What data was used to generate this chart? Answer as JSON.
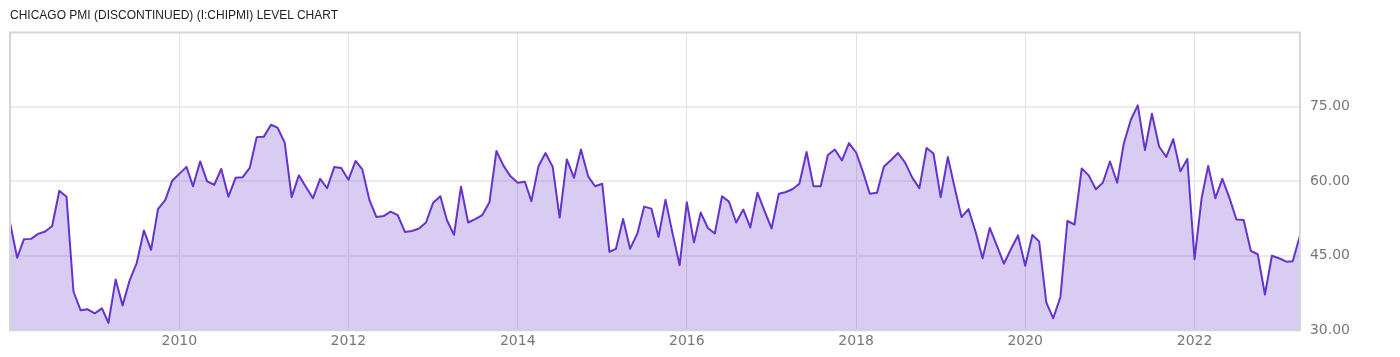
{
  "chart_data": {
    "type": "area",
    "title": "CHICAGO PMI (DISCONTINUED) (I:CHIPMI) LEVEL CHART",
    "x": [
      "2008-01",
      "2008-02",
      "2008-03",
      "2008-04",
      "2008-05",
      "2008-06",
      "2008-07",
      "2008-08",
      "2008-09",
      "2008-10",
      "2008-11",
      "2008-12",
      "2009-01",
      "2009-02",
      "2009-03",
      "2009-04",
      "2009-05",
      "2009-06",
      "2009-07",
      "2009-08",
      "2009-09",
      "2009-10",
      "2009-11",
      "2009-12",
      "2010-01",
      "2010-02",
      "2010-03",
      "2010-04",
      "2010-05",
      "2010-06",
      "2010-07",
      "2010-08",
      "2010-09",
      "2010-10",
      "2010-11",
      "2010-12",
      "2011-01",
      "2011-02",
      "2011-03",
      "2011-04",
      "2011-05",
      "2011-06",
      "2011-07",
      "2011-08",
      "2011-09",
      "2011-10",
      "2011-11",
      "2011-12",
      "2012-01",
      "2012-02",
      "2012-03",
      "2012-04",
      "2012-05",
      "2012-06",
      "2012-07",
      "2012-08",
      "2012-09",
      "2012-10",
      "2012-11",
      "2012-12",
      "2013-01",
      "2013-02",
      "2013-03",
      "2013-04",
      "2013-05",
      "2013-06",
      "2013-07",
      "2013-08",
      "2013-09",
      "2013-10",
      "2013-11",
      "2013-12",
      "2014-01",
      "2014-02",
      "2014-03",
      "2014-04",
      "2014-05",
      "2014-06",
      "2014-07",
      "2014-08",
      "2014-09",
      "2014-10",
      "2014-11",
      "2014-12",
      "2015-01",
      "2015-02",
      "2015-03",
      "2015-04",
      "2015-05",
      "2015-06",
      "2015-07",
      "2015-08",
      "2015-09",
      "2015-10",
      "2015-11",
      "2015-12",
      "2016-01",
      "2016-02",
      "2016-03",
      "2016-04",
      "2016-05",
      "2016-06",
      "2016-07",
      "2016-08",
      "2016-09",
      "2016-10",
      "2016-11",
      "2016-12",
      "2017-01",
      "2017-02",
      "2017-03",
      "2017-04",
      "2017-05",
      "2017-06",
      "2017-07",
      "2017-08",
      "2017-09",
      "2017-10",
      "2017-11",
      "2017-12",
      "2018-01",
      "2018-02",
      "2018-03",
      "2018-04",
      "2018-05",
      "2018-06",
      "2018-07",
      "2018-08",
      "2018-09",
      "2018-10",
      "2018-11",
      "2018-12",
      "2019-01",
      "2019-02",
      "2019-03",
      "2019-04",
      "2019-05",
      "2019-06",
      "2019-07",
      "2019-08",
      "2019-09",
      "2019-10",
      "2019-11",
      "2019-12",
      "2020-01",
      "2020-02",
      "2020-03",
      "2020-04",
      "2020-05",
      "2020-06",
      "2020-07",
      "2020-08",
      "2020-09",
      "2020-10",
      "2020-11",
      "2020-12",
      "2021-01",
      "2021-02",
      "2021-03",
      "2021-04",
      "2021-05",
      "2021-06",
      "2021-07",
      "2021-08",
      "2021-09",
      "2021-10",
      "2021-11",
      "2021-12",
      "2022-01",
      "2022-02",
      "2022-03",
      "2022-04",
      "2022-05",
      "2022-06",
      "2022-07",
      "2022-08",
      "2022-09",
      "2022-10",
      "2022-11",
      "2022-12",
      "2023-01",
      "2023-02",
      "2023-03",
      "2023-04"
    ],
    "series": [
      {
        "color": "#6633cc",
        "values": [
          51.7,
          44.6,
          48.3,
          48.4,
          49.4,
          49.9,
          51.0,
          58.1,
          56.9,
          37.8,
          34.0,
          34.2,
          33.4,
          34.4,
          31.5,
          40.2,
          35.0,
          40.1,
          43.5,
          50.1,
          46.2,
          54.4,
          56.2,
          60.1,
          61.5,
          62.9,
          59.0,
          64.0,
          60.0,
          59.3,
          62.5,
          56.9,
          60.7,
          60.8,
          62.7,
          68.9,
          69.0,
          71.4,
          70.8,
          67.8,
          56.8,
          61.2,
          58.9,
          56.6,
          60.5,
          58.6,
          62.9,
          62.7,
          60.3,
          64.1,
          62.4,
          56.2,
          52.8,
          53.0,
          53.9,
          53.2,
          49.8,
          50.0,
          50.5,
          51.7,
          55.7,
          57.0,
          52.2,
          49.2,
          58.9,
          51.7,
          52.4,
          53.2,
          55.8,
          66.1,
          63.1,
          61.0,
          59.7,
          59.9,
          56.0,
          63.1,
          65.7,
          62.9,
          52.7,
          64.4,
          60.7,
          66.4,
          61.0,
          59.0,
          59.5,
          45.8,
          46.4,
          52.4,
          46.4,
          49.4,
          54.9,
          54.5,
          48.8,
          56.3,
          49.4,
          43.1,
          55.8,
          47.7,
          53.7,
          50.6,
          49.5,
          57.0,
          55.9,
          51.7,
          54.3,
          50.7,
          57.7,
          54.1,
          50.5,
          57.5,
          57.8,
          58.4,
          59.5,
          65.9,
          59.0,
          59.0,
          65.3,
          66.4,
          64.2,
          67.7,
          65.8,
          61.7,
          57.5,
          57.7,
          63.0,
          64.3,
          65.7,
          63.7,
          60.7,
          58.6,
          66.7,
          65.6,
          56.8,
          64.9,
          59.0,
          52.8,
          54.4,
          49.8,
          44.5,
          50.6,
          47.0,
          43.4,
          46.4,
          49.1,
          43.0,
          49.2,
          47.9,
          35.6,
          32.4,
          36.7,
          52.0,
          51.3,
          62.6,
          61.2,
          58.4,
          59.7,
          64.0,
          59.7,
          67.5,
          72.4,
          75.3,
          66.3,
          73.6,
          67.0,
          64.9,
          68.5,
          62.0,
          64.5,
          44.3,
          56.7,
          63.1,
          56.6,
          60.5,
          56.6,
          52.3,
          52.2,
          46.0,
          45.3,
          37.2,
          45.0,
          44.5,
          43.8,
          43.9,
          49.0
        ]
      }
    ],
    "xlim": [
      "2008-01",
      "2023-04"
    ],
    "xticks": [
      "2010",
      "2012",
      "2014",
      "2016",
      "2018",
      "2020",
      "2022"
    ],
    "ylim": [
      30,
      90
    ],
    "yticks": [
      {
        "value": 30,
        "label": "30.00"
      },
      {
        "value": 45,
        "label": "45.00"
      },
      {
        "value": 60,
        "label": "60.00"
      },
      {
        "value": 75,
        "label": "75.00"
      }
    ],
    "grid": true
  }
}
